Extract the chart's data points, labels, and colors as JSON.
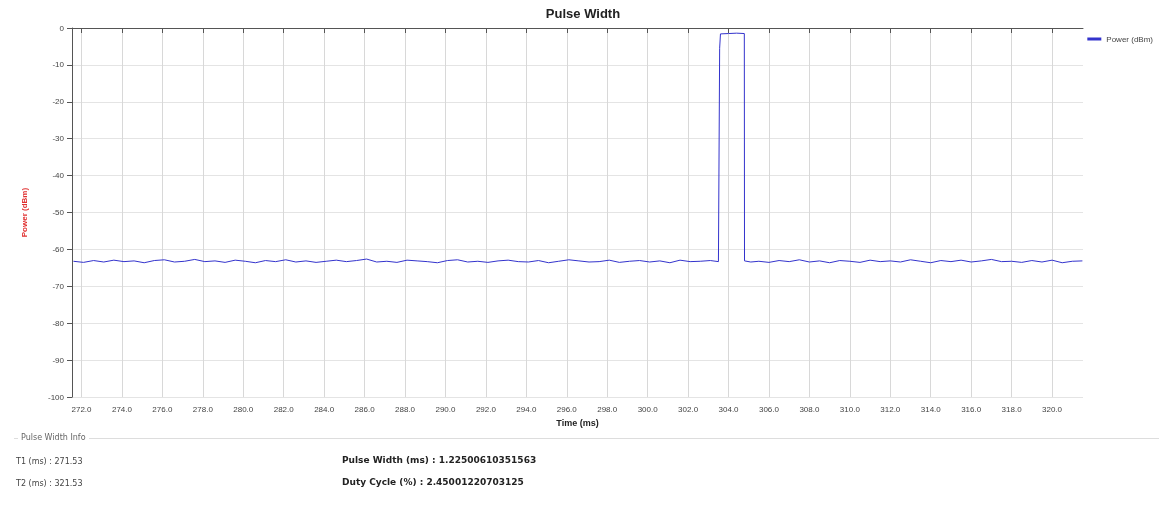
{
  "chart_data": {
    "type": "line",
    "title": "Pulse Width",
    "xlabel": "Time (ms)",
    "ylabel": "Power (dBm)",
    "x": [
      271.6,
      272.1,
      272.6,
      273.1,
      273.6,
      274.1,
      274.6,
      275.1,
      275.6,
      276.1,
      276.6,
      277.1,
      277.6,
      278.1,
      278.6,
      279.1,
      279.6,
      280.1,
      280.6,
      281.1,
      281.6,
      282.1,
      282.6,
      283.1,
      283.6,
      284.1,
      284.6,
      285.1,
      285.6,
      286.1,
      286.6,
      287.1,
      287.6,
      288.1,
      288.6,
      289.1,
      289.6,
      290.1,
      290.6,
      291.1,
      291.6,
      292.1,
      292.6,
      293.1,
      293.6,
      294.1,
      294.6,
      295.1,
      295.6,
      296.1,
      296.6,
      297.1,
      297.6,
      298.1,
      298.6,
      299.1,
      299.6,
      300.1,
      300.6,
      301.1,
      301.6,
      302.1,
      302.6,
      303.1,
      303.5,
      303.56,
      303.6,
      304.0,
      304.4,
      304.78,
      304.79,
      305.1,
      305.5,
      306.0,
      306.5,
      307.0,
      307.5,
      308.0,
      308.5,
      309.0,
      309.5,
      310.0,
      310.5,
      311.0,
      311.5,
      312.0,
      312.5,
      313.0,
      313.5,
      314.0,
      314.5,
      315.0,
      315.5,
      316.0,
      316.5,
      317.0,
      317.5,
      318.0,
      318.5,
      319.0,
      319.5,
      320.0,
      320.5,
      321.0,
      321.5
    ],
    "series": [
      {
        "name": "Power (dBm)",
        "color": "#3333cc",
        "values": [
          -63.2,
          -63.5,
          -63.0,
          -63.4,
          -62.9,
          -63.3,
          -63.1,
          -63.6,
          -63.0,
          -62.8,
          -63.4,
          -63.2,
          -62.7,
          -63.3,
          -63.1,
          -63.5,
          -62.9,
          -63.2,
          -63.6,
          -63.0,
          -63.3,
          -62.8,
          -63.4,
          -63.1,
          -63.5,
          -63.2,
          -62.9,
          -63.3,
          -63.0,
          -62.6,
          -63.4,
          -63.2,
          -63.5,
          -62.9,
          -63.1,
          -63.3,
          -63.6,
          -63.0,
          -62.8,
          -63.4,
          -63.2,
          -63.5,
          -63.1,
          -62.9,
          -63.3,
          -63.4,
          -63.0,
          -63.6,
          -63.2,
          -62.8,
          -63.1,
          -63.4,
          -63.3,
          -62.9,
          -63.5,
          -63.2,
          -63.0,
          -63.4,
          -63.1,
          -63.6,
          -62.9,
          -63.3,
          -63.2,
          -63.0,
          -63.3,
          -5.5,
          -1.6,
          -1.5,
          -1.4,
          -1.5,
          -63.1,
          -63.4,
          -63.2,
          -63.5,
          -63.0,
          -63.3,
          -62.8,
          -63.4,
          -63.1,
          -63.6,
          -63.0,
          -63.2,
          -63.5,
          -62.9,
          -63.3,
          -63.1,
          -63.4,
          -62.8,
          -63.2,
          -63.6,
          -63.0,
          -63.3,
          -62.9,
          -63.4,
          -63.1,
          -62.7,
          -63.3,
          -63.2,
          -63.5,
          -63.0,
          -63.4,
          -62.9,
          -63.6,
          -63.2,
          -63.1
        ]
      }
    ],
    "xlim": [
      271.53,
      321.53
    ],
    "xticks": [
      {
        "value": 272,
        "label": "272.0"
      },
      {
        "value": 274,
        "label": "274.0"
      },
      {
        "value": 276,
        "label": "276.0"
      },
      {
        "value": 278,
        "label": "278.0"
      },
      {
        "value": 280,
        "label": "280.0"
      },
      {
        "value": 282,
        "label": "282.0"
      },
      {
        "value": 284,
        "label": "284.0"
      },
      {
        "value": 286,
        "label": "286.0"
      },
      {
        "value": 288,
        "label": "288.0"
      },
      {
        "value": 290,
        "label": "290.0"
      },
      {
        "value": 292,
        "label": "292.0"
      },
      {
        "value": 294,
        "label": "294.0"
      },
      {
        "value": 296,
        "label": "296.0"
      },
      {
        "value": 298,
        "label": "298.0"
      },
      {
        "value": 300,
        "label": "300.0"
      },
      {
        "value": 302,
        "label": "302.0"
      },
      {
        "value": 304,
        "label": "304.0"
      },
      {
        "value": 306,
        "label": "306.0"
      },
      {
        "value": 308,
        "label": "308.0"
      },
      {
        "value": 310,
        "label": "310.0"
      },
      {
        "value": 312,
        "label": "312.0"
      },
      {
        "value": 314,
        "label": "314.0"
      },
      {
        "value": 316,
        "label": "316.0"
      },
      {
        "value": 318,
        "label": "318.0"
      },
      {
        "value": 320,
        "label": "320.0"
      }
    ],
    "ylim": [
      -100,
      0
    ],
    "yticks": [
      -100,
      -90,
      -80,
      -70,
      -60,
      -50,
      -40,
      -30,
      -20,
      -10,
      0
    ],
    "grid": true,
    "legend": "top right",
    "marker": "none",
    "line_style": "solid",
    "annotations": [
      "Pulse Width Info",
      "T1 (ms) : 271.53",
      "T2 (ms) : 321.53",
      "Pulse Width (ms) : 1.22500610351563",
      "Duty Cycle (%) : 2.45001220703125"
    ]
  }
}
